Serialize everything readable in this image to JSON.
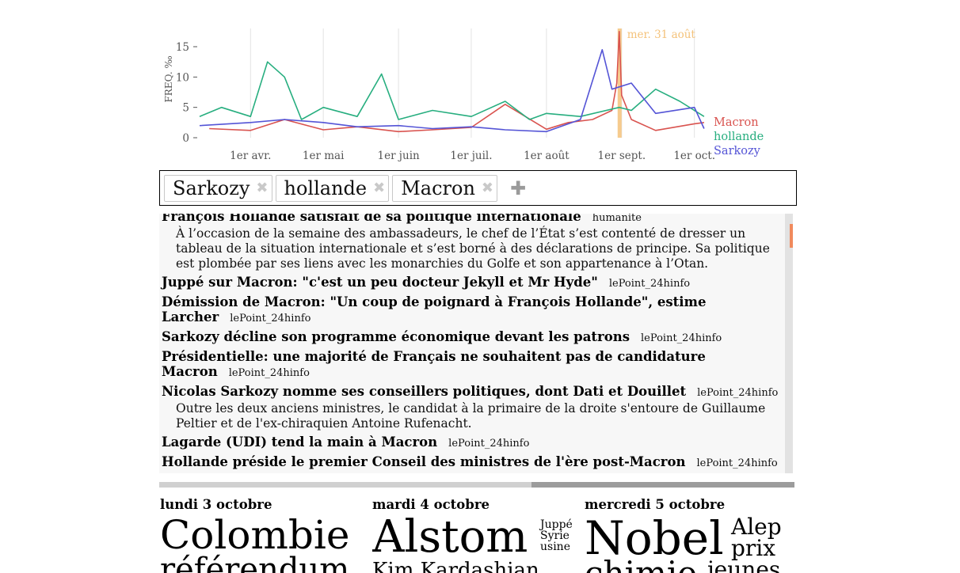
{
  "chart": {
    "ylabel": "FREQ. ‰",
    "yticks": [
      "0",
      "5",
      "10",
      "15"
    ],
    "xticks": [
      "1er avr.",
      "1er mai",
      "1er juin",
      "1er juil.",
      "1er août",
      "1er sept.",
      "1er oct."
    ],
    "highlight_label": "mer. 31 août",
    "colors": {
      "Macron": "#d9534f",
      "hollande": "#27ae7f",
      "Sarkozy": "#5454d6",
      "highlight": "#f4c27a"
    }
  },
  "chart_data": {
    "type": "line",
    "xlabel": "",
    "ylabel": "FREQ. ‰",
    "ylim": [
      0,
      18
    ],
    "xrange": [
      "2016-03-11",
      "2016-10-06"
    ],
    "grid": "vertical",
    "legend_position": "right",
    "highlight_date": "2016-08-31",
    "series": [
      {
        "name": "Macron",
        "x": [
          "2016-03-15",
          "2016-04-01",
          "2016-04-15",
          "2016-05-01",
          "2016-05-15",
          "2016-06-01",
          "2016-06-15",
          "2016-07-01",
          "2016-07-15",
          "2016-08-01",
          "2016-08-10",
          "2016-08-20",
          "2016-08-28",
          "2016-08-30",
          "2016-08-31",
          "2016-09-01",
          "2016-09-05",
          "2016-09-15",
          "2016-10-01",
          "2016-10-05"
        ],
        "values": [
          1.5,
          1.2,
          3.0,
          1.3,
          1.8,
          1.0,
          1.3,
          1.7,
          5.5,
          1.4,
          2.5,
          3.0,
          4.5,
          9.0,
          17.5,
          7.0,
          3.0,
          1.2,
          2.3,
          2.5
        ]
      },
      {
        "name": "hollande",
        "x": [
          "2016-03-11",
          "2016-03-20",
          "2016-04-01",
          "2016-04-08",
          "2016-04-15",
          "2016-04-22",
          "2016-05-01",
          "2016-05-15",
          "2016-05-25",
          "2016-06-01",
          "2016-06-15",
          "2016-07-01",
          "2016-07-15",
          "2016-07-25",
          "2016-08-01",
          "2016-08-15",
          "2016-08-31",
          "2016-09-05",
          "2016-09-15",
          "2016-09-25",
          "2016-10-05"
        ],
        "values": [
          3.5,
          5.0,
          3.5,
          12.5,
          10.0,
          3.0,
          5.0,
          3.5,
          10.5,
          3.0,
          4.5,
          3.5,
          6.0,
          3.0,
          4.0,
          3.5,
          5.0,
          4.5,
          8.0,
          6.0,
          3.5
        ]
      },
      {
        "name": "Sarkozy",
        "x": [
          "2016-03-11",
          "2016-04-01",
          "2016-04-15",
          "2016-05-01",
          "2016-05-15",
          "2016-06-01",
          "2016-06-15",
          "2016-07-01",
          "2016-07-15",
          "2016-08-01",
          "2016-08-15",
          "2016-08-24",
          "2016-08-28",
          "2016-09-05",
          "2016-09-15",
          "2016-10-01",
          "2016-10-05"
        ],
        "values": [
          2.0,
          2.5,
          3.0,
          2.5,
          1.8,
          2.0,
          1.5,
          1.8,
          1.3,
          1.0,
          3.0,
          14.5,
          8.0,
          9.0,
          4.0,
          5.0,
          1.5
        ]
      }
    ]
  },
  "terms": [
    {
      "label": "Sarkozy",
      "remove": "✖"
    },
    {
      "label": "hollande",
      "remove": "✖"
    },
    {
      "label": "Macron",
      "remove": "✖"
    }
  ],
  "add_term": "✚",
  "articles": [
    {
      "title": "François Hollande satisfait de sa politique internationale",
      "source": "humanite",
      "desc": "À l’occasion de la semaine des ambassadeurs, le chef de l’État s’est contenté de dresser un tableau de la situation internationale et s’est borné à des déclarations de principe. Sa politique est plombée par ses liens avec les monarchies du Golfe et son appartenance à l’Otan."
    },
    {
      "title": "Juppé sur Macron: \"c'est un peu docteur Jekyll et Mr Hyde\"",
      "source": "lePoint_24hinfo",
      "desc": ""
    },
    {
      "title": "Démission de Macron: \"Un coup de poignard à François Hollande\", estime Larcher",
      "source": "lePoint_24hinfo",
      "desc": ""
    },
    {
      "title": "Sarkozy décline son programme économique devant les patrons",
      "source": "lePoint_24hinfo",
      "desc": ""
    },
    {
      "title": "Présidentielle: une majorité de Français ne souhaitent pas de candidature Macron",
      "source": "lePoint_24hinfo",
      "desc": ""
    },
    {
      "title": "Nicolas Sarkozy nomme ses conseillers politiques, dont Dati et Douillet",
      "source": "lePoint_24hinfo",
      "desc": "Outre les deux anciens ministres, le candidat à la primaire de la droite s'entoure de Guillaume Peltier et de l'ex-chiraquien Antoine Rufenacht."
    },
    {
      "title": "Lagarde (UDI) tend la main à Macron",
      "source": "lePoint_24hinfo",
      "desc": ""
    },
    {
      "title": "Hollande préside le premier Conseil des ministres de l'ère post-Macron",
      "source": "lePoint_24hinfo",
      "desc": ""
    }
  ],
  "days": [
    {
      "label": "lundi 3 octobre",
      "words": [
        {
          "text": "Colombie",
          "size": 50
        },
        {
          "text": "référendum",
          "size": 40
        }
      ]
    },
    {
      "label": "mardi 4 octobre",
      "words": [
        {
          "text": "Alstom",
          "size": 56
        },
        {
          "text": "Juppé",
          "size": 14
        },
        {
          "text": "Syrie",
          "size": 14
        },
        {
          "text": "usine",
          "size": 14
        },
        {
          "text": "Kim Kardashian",
          "size": 26
        }
      ]
    },
    {
      "label": "mercredi 5 octobre",
      "words": [
        {
          "text": "Nobel",
          "size": 58
        },
        {
          "text": "Alep",
          "size": 28
        },
        {
          "text": "prix",
          "size": 28
        },
        {
          "text": "chimie",
          "size": 42
        },
        {
          "text": "jeunes",
          "size": 28
        }
      ]
    }
  ]
}
